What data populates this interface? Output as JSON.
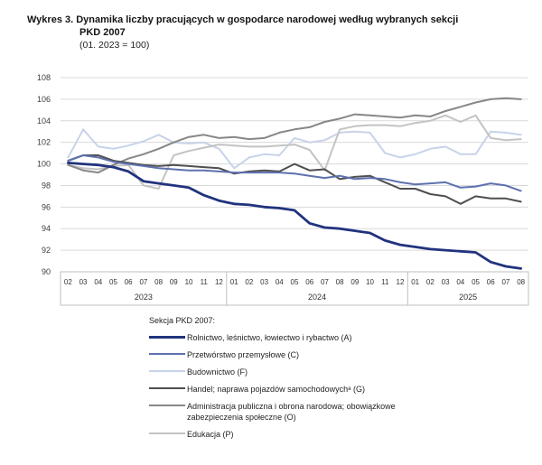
{
  "header": {
    "line1": "Wykres 3. Dynamika liczby pracujących w gospodarce narodowej według wybranych sekcji",
    "line2": "PKD 2007",
    "subtitle": "(01. 2023 = 100)"
  },
  "legend": {
    "heading": "Sekcja PKD 2007:"
  },
  "chart_data": {
    "type": "line",
    "title": "Wykres 3. Dynamika liczby pracujących w gospodarce narodowej według wybranych sekcji PKD 2007",
    "subtitle": "(01. 2023 = 100)",
    "ylim": [
      90,
      108
    ],
    "yticks": [
      90,
      92,
      94,
      96,
      98,
      100,
      102,
      104,
      106,
      108
    ],
    "grid": "horizontal",
    "legend_position": "bottom",
    "x_months": [
      "02",
      "03",
      "04",
      "05",
      "06",
      "07",
      "08",
      "09",
      "10",
      "11",
      "12",
      "01",
      "02",
      "03",
      "04",
      "05",
      "06",
      "07",
      "08",
      "09",
      "10",
      "11",
      "12",
      "01",
      "02",
      "03",
      "04",
      "05",
      "06",
      "07",
      "08"
    ],
    "year_groups": [
      {
        "label": "2023",
        "months": 11
      },
      {
        "label": "2024",
        "months": 12
      },
      {
        "label": "2025",
        "months": 8
      }
    ],
    "draw_order": [
      "F",
      "P",
      "O",
      "G",
      "C",
      "A"
    ],
    "series": [
      {
        "key": "A",
        "name": "Rolnictwo, leśnictwo, łowiectwo i rybactwo (A)",
        "color": "#21337e",
        "width": 2.8,
        "values": [
          100.1,
          100.0,
          99.9,
          99.7,
          99.3,
          98.4,
          98.2,
          98.0,
          97.8,
          97.1,
          96.6,
          96.3,
          96.2,
          96.0,
          95.9,
          95.7,
          94.5,
          94.1,
          94.0,
          93.8,
          93.6,
          92.9,
          92.5,
          92.3,
          92.1,
          92.0,
          91.9,
          91.8,
          90.9,
          90.5,
          90.3
        ]
      },
      {
        "key": "C",
        "name": "Przetwórstwo przemysłowe (C)",
        "color": "#5e71af",
        "width": 2,
        "values": [
          100.3,
          100.8,
          100.6,
          100.2,
          100.0,
          99.8,
          99.6,
          99.5,
          99.4,
          99.4,
          99.3,
          99.2,
          99.2,
          99.2,
          99.2,
          99.1,
          98.9,
          98.7,
          98.9,
          98.6,
          98.7,
          98.6,
          98.3,
          98.1,
          98.2,
          98.3,
          97.8,
          97.9,
          98.2,
          98.0,
          97.5
        ]
      },
      {
        "key": "F",
        "name": "Budownictwo (F)",
        "color": "#c8d3e9",
        "width": 2,
        "values": [
          100.6,
          103.2,
          101.6,
          101.4,
          101.7,
          102.1,
          102.7,
          102.0,
          101.9,
          102.0,
          101.4,
          99.6,
          100.6,
          100.9,
          100.8,
          102.4,
          102.0,
          102.2,
          102.9,
          103.0,
          102.9,
          101.0,
          100.6,
          100.9,
          101.4,
          101.6,
          100.9,
          100.9,
          103.0,
          102.9,
          102.7
        ]
      },
      {
        "key": "G",
        "name": "Handel; naprawa pojazdów samochodowychᵃ (G)",
        "color": "#4f4f4f",
        "width": 2,
        "values": [
          100.3,
          100.8,
          100.8,
          100.3,
          100.1,
          99.9,
          99.8,
          99.9,
          99.8,
          99.7,
          99.6,
          99.1,
          99.3,
          99.4,
          99.3,
          100.0,
          99.4,
          99.5,
          98.6,
          98.8,
          98.9,
          98.3,
          97.7,
          97.7,
          97.2,
          97.0,
          96.3,
          97.0,
          96.8,
          96.8,
          96.5
        ]
      },
      {
        "key": "O",
        "name": "Administracja publiczna i obrona narodowa; obowiązkowe zabezpieczenia społeczne (O)",
        "color": "#878787",
        "width": 2,
        "values": [
          99.9,
          99.4,
          99.2,
          99.9,
          100.5,
          100.9,
          101.4,
          102.0,
          102.5,
          102.7,
          102.4,
          102.5,
          102.3,
          102.4,
          102.9,
          103.2,
          103.4,
          103.9,
          104.2,
          104.6,
          104.5,
          104.4,
          104.3,
          104.5,
          104.4,
          104.9,
          105.3,
          105.7,
          106.0,
          106.1,
          106.0
        ]
      },
      {
        "key": "P",
        "name": "Edukacja (P)",
        "color": "#c3c3c3",
        "width": 2,
        "values": [
          99.9,
          99.6,
          99.5,
          99.8,
          99.9,
          98.0,
          97.7,
          100.8,
          101.2,
          101.5,
          101.8,
          101.7,
          101.6,
          101.6,
          101.7,
          101.8,
          101.3,
          99.4,
          103.2,
          103.5,
          103.6,
          103.6,
          103.5,
          103.8,
          104.0,
          104.5,
          103.9,
          104.5,
          102.4,
          102.2,
          102.3
        ]
      }
    ],
    "axis_colors": {
      "gridline": "#d9d9d9",
      "axis_box": "#bfbfbf",
      "tick_text": "#3d3d3d"
    }
  }
}
